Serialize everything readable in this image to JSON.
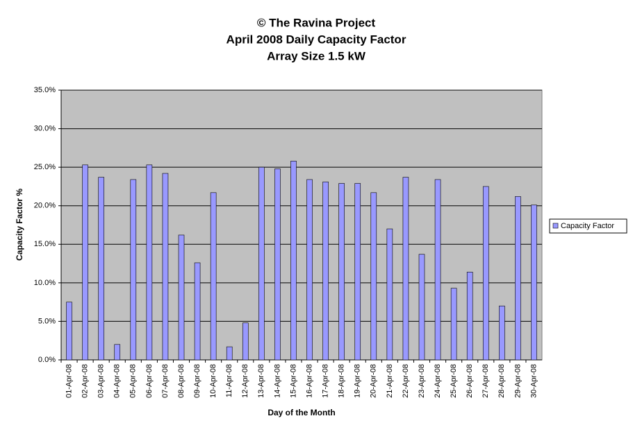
{
  "chart_data": {
    "type": "bar",
    "title": [
      "© The Ravina Project",
      "April 2008 Daily Capacity Factor",
      "Array Size 1.5 kW"
    ],
    "x_label": "Day of the Month",
    "y_label": "Capacity Factor %",
    "categories": [
      "01-Apr-08",
      "02-Apr-08",
      "03-Apr-08",
      "04-Apr-08",
      "05-Apr-08",
      "06-Apr-08",
      "07-Apr-08",
      "08-Apr-08",
      "09-Apr-08",
      "10-Apr-08",
      "11-Apr-08",
      "12-Apr-08",
      "13-Apr-08",
      "14-Apr-08",
      "15-Apr-08",
      "16-Apr-08",
      "17-Apr-08",
      "18-Apr-08",
      "19-Apr-08",
      "20-Apr-08",
      "21-Apr-08",
      "22-Apr-08",
      "23-Apr-08",
      "24-Apr-08",
      "25-Apr-08",
      "26-Apr-08",
      "27-Apr-08",
      "28-Apr-08",
      "29-Apr-08",
      "30-Apr-08"
    ],
    "series": [
      {
        "name": "Capacity Factor",
        "color": "#9999ff",
        "values": [
          7.5,
          25.3,
          23.7,
          2.0,
          23.4,
          25.3,
          24.2,
          16.2,
          12.6,
          21.7,
          1.7,
          4.8,
          25.0,
          24.8,
          25.8,
          23.4,
          23.1,
          22.9,
          22.9,
          21.7,
          17.0,
          23.7,
          13.7,
          23.4,
          9.3,
          11.4,
          22.5,
          7.0,
          21.2,
          20.1
        ]
      }
    ],
    "ylim": [
      0,
      35
    ],
    "yticks": [
      {
        "value": 0,
        "label": "0.0%"
      },
      {
        "value": 5,
        "label": "5.0%"
      },
      {
        "value": 10,
        "label": "10.0%"
      },
      {
        "value": 15,
        "label": "15.0%"
      },
      {
        "value": 20,
        "label": "20.0%"
      },
      {
        "value": 25,
        "label": "25.0%"
      },
      {
        "value": 30,
        "label": "30.0%"
      },
      {
        "value": 35,
        "label": "35.0%"
      }
    ],
    "grid": true,
    "legend": "right"
  }
}
